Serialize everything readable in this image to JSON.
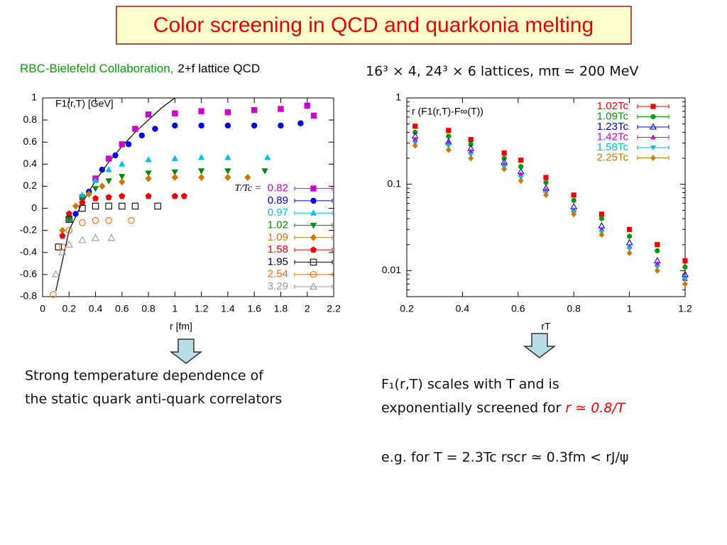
{
  "title": "Color screening in QCD and quarkonia melting",
  "header_left": {
    "collaboration": "RBC-Bielefeld Collaboration,",
    "method": "2+f lattice QCD"
  },
  "header_right": "16³ × 4, 24³ × 6 lattices, mπ ≃ 200 MeV",
  "note_left": [
    "Strong temperature dependence of",
    "the static quark anti-quark correlators"
  ],
  "note_right": {
    "line1": "F₁(r,T) scales with T and is",
    "line2": "exponentially screened for ",
    "line2_highlight": "r ≃ 0.8/T",
    "line3": "e.g.  for T = 2.3Tc  rscr ≃ 0.3fm < rJ/ψ"
  },
  "chart_data": [
    {
      "type": "scatter",
      "y_label": "F1(r,T) [GeV]",
      "x_label": "r [fm]",
      "xlim": [
        0,
        2.2
      ],
      "ylim": [
        -0.8,
        1
      ],
      "xticks": [
        0,
        0.2,
        0.4,
        0.6,
        0.8,
        1,
        1.2,
        1.4,
        1.6,
        1.8,
        2,
        2.2
      ],
      "yticks": [
        -0.8,
        -0.6,
        -0.4,
        -0.2,
        0,
        0.2,
        0.4,
        0.6,
        0.8,
        1
      ],
      "grid": false,
      "log_y": false,
      "legend": "lower right",
      "legend_title": "T/Tc =",
      "reference_line": {
        "color": "#000000",
        "x": [
          0.1,
          0.2,
          0.3,
          0.4,
          0.5,
          0.6,
          0.7,
          0.8,
          0.9,
          1.0
        ],
        "y": [
          -0.75,
          -0.2,
          0.05,
          0.25,
          0.42,
          0.56,
          0.69,
          0.8,
          0.91,
          1.0
        ]
      },
      "series": [
        {
          "name": "0.82",
          "color": "#cc00cc",
          "marker": "square",
          "x": [
            0.3,
            0.4,
            0.5,
            0.6,
            0.7,
            0.8,
            1.0,
            1.2,
            1.4,
            1.6,
            1.8,
            2.0,
            2.05
          ],
          "values": [
            0.1,
            0.27,
            0.45,
            0.58,
            0.72,
            0.85,
            0.86,
            0.88,
            0.87,
            0.89,
            0.9,
            0.93,
            0.84
          ]
        },
        {
          "name": "0.89",
          "color": "#0000dd",
          "marker": "circle",
          "x": [
            0.25,
            0.35,
            0.45,
            0.55,
            0.65,
            0.75,
            0.85,
            1.0,
            1.2,
            1.4,
            1.6,
            1.8,
            1.95
          ],
          "values": [
            -0.05,
            0.15,
            0.35,
            0.48,
            0.58,
            0.66,
            0.72,
            0.75,
            0.75,
            0.75,
            0.75,
            0.75,
            0.77
          ]
        },
        {
          "name": "0.97",
          "color": "#00bbee",
          "marker": "triangle",
          "x": [
            0.2,
            0.3,
            0.4,
            0.5,
            0.6,
            0.8,
            1.0,
            1.2,
            1.4,
            1.7
          ],
          "values": [
            -0.1,
            0.12,
            0.25,
            0.35,
            0.4,
            0.44,
            0.45,
            0.46,
            0.46,
            0.46
          ]
        },
        {
          "name": "1.02",
          "color": "#008800",
          "marker": "triangle-down",
          "x": [
            0.2,
            0.3,
            0.4,
            0.5,
            0.6,
            0.8,
            1.0,
            1.2,
            1.4,
            1.68
          ],
          "values": [
            -0.1,
            0.08,
            0.18,
            0.25,
            0.29,
            0.32,
            0.33,
            0.34,
            0.34,
            0.34
          ]
        },
        {
          "name": "1.09",
          "color": "#cc7700",
          "marker": "diamond",
          "x": [
            0.15,
            0.25,
            0.35,
            0.45,
            0.6,
            0.8,
            1.0,
            1.2,
            1.4,
            1.55
          ],
          "values": [
            -0.2,
            0.02,
            0.13,
            0.2,
            0.24,
            0.27,
            0.28,
            0.28,
            0.28,
            0.28
          ]
        },
        {
          "name": "1.58",
          "color": "#ee0000",
          "marker": "pentagon",
          "x": [
            0.15,
            0.2,
            0.3,
            0.4,
            0.5,
            0.6,
            0.8,
            1.0,
            1.07
          ],
          "values": [
            -0.25,
            -0.05,
            0.05,
            0.09,
            0.1,
            0.11,
            0.11,
            0.11,
            0.11
          ]
        },
        {
          "name": "1.95",
          "color": "#000000",
          "marker": "square-open",
          "x": [
            0.12,
            0.2,
            0.3,
            0.4,
            0.5,
            0.6,
            0.7,
            0.87
          ],
          "values": [
            -0.35,
            -0.1,
            0,
            0.02,
            0.02,
            0.02,
            0.02,
            0.02
          ]
        },
        {
          "name": "2.54",
          "color": "#ff6600",
          "marker": "circle-open",
          "x": [
            0.08,
            0.15,
            0.2,
            0.3,
            0.4,
            0.5,
            0.67
          ],
          "values": [
            -0.78,
            -0.35,
            -0.2,
            -0.13,
            -0.11,
            -0.11,
            -0.11
          ]
        },
        {
          "name": "3.29",
          "color": "#999999",
          "marker": "triangle-open",
          "x": [
            0.1,
            0.15,
            0.2,
            0.3,
            0.4,
            0.52
          ],
          "values": [
            -0.6,
            -0.4,
            -0.33,
            -0.29,
            -0.27,
            -0.27
          ]
        }
      ]
    },
    {
      "type": "scatter",
      "y_label": "r (F1(r,T)-F∞(T))",
      "x_label": "rT",
      "xlim": [
        0.2,
        1.2
      ],
      "ylim": [
        0.005,
        1
      ],
      "xticks": [
        0.2,
        0.4,
        0.6,
        0.8,
        1,
        1.2
      ],
      "yticks": [
        0.01,
        0.1,
        1
      ],
      "grid": false,
      "log_y": true,
      "legend": "upper right",
      "series": [
        {
          "name": "1.02Tc",
          "color": "#ee0000",
          "marker": "square",
          "x": [
            0.23,
            0.35,
            0.43,
            0.55,
            0.61,
            0.7,
            0.8,
            0.9,
            1.0,
            1.1,
            1.2
          ],
          "values": [
            0.47,
            0.42,
            0.33,
            0.23,
            0.19,
            0.12,
            0.075,
            0.045,
            0.03,
            0.02,
            0.013
          ]
        },
        {
          "name": "1.09Tc",
          "color": "#009900",
          "marker": "circle",
          "x": [
            0.23,
            0.35,
            0.43,
            0.55,
            0.61,
            0.7,
            0.8,
            0.9,
            1.0,
            1.1,
            1.2
          ],
          "values": [
            0.4,
            0.36,
            0.29,
            0.2,
            0.16,
            0.105,
            0.065,
            0.04,
            0.025,
            0.017,
            0.011
          ]
        },
        {
          "name": "1.23Tc",
          "color": "#0000cc",
          "marker": "triangle-open",
          "x": [
            0.23,
            0.35,
            0.43,
            0.55,
            0.61,
            0.7,
            0.8,
            0.9,
            1.0,
            1.1,
            1.2
          ],
          "values": [
            0.36,
            0.31,
            0.26,
            0.18,
            0.14,
            0.09,
            0.055,
            0.033,
            0.021,
            0.013,
            0.009
          ]
        },
        {
          "name": "1.42Tc",
          "color": "#cc00cc",
          "marker": "triangle",
          "x": [
            0.23,
            0.35,
            0.43,
            0.55,
            0.61,
            0.7,
            0.8,
            0.9,
            1.0,
            1.1,
            1.2
          ],
          "values": [
            0.33,
            0.3,
            0.24,
            0.17,
            0.13,
            0.085,
            0.05,
            0.03,
            0.019,
            0.012,
            0.008
          ]
        },
        {
          "name": "1.58Tc",
          "color": "#00bbdd",
          "marker": "triangle-down",
          "x": [
            0.23,
            0.35,
            0.43,
            0.55,
            0.61,
            0.7,
            0.8,
            0.9,
            1.0,
            1.1,
            1.2
          ],
          "values": [
            0.3,
            0.28,
            0.22,
            0.16,
            0.12,
            0.08,
            0.048,
            0.028,
            0.018,
            0.011,
            0.008
          ]
        },
        {
          "name": "2.25Tc",
          "color": "#cc7700",
          "marker": "diamond",
          "x": [
            0.23,
            0.35,
            0.43,
            0.55,
            0.61,
            0.7,
            0.8,
            0.9,
            1.0,
            1.1,
            1.2
          ],
          "values": [
            0.28,
            0.25,
            0.2,
            0.15,
            0.11,
            0.075,
            0.045,
            0.026,
            0.016,
            0.01,
            0.007
          ]
        }
      ]
    }
  ]
}
